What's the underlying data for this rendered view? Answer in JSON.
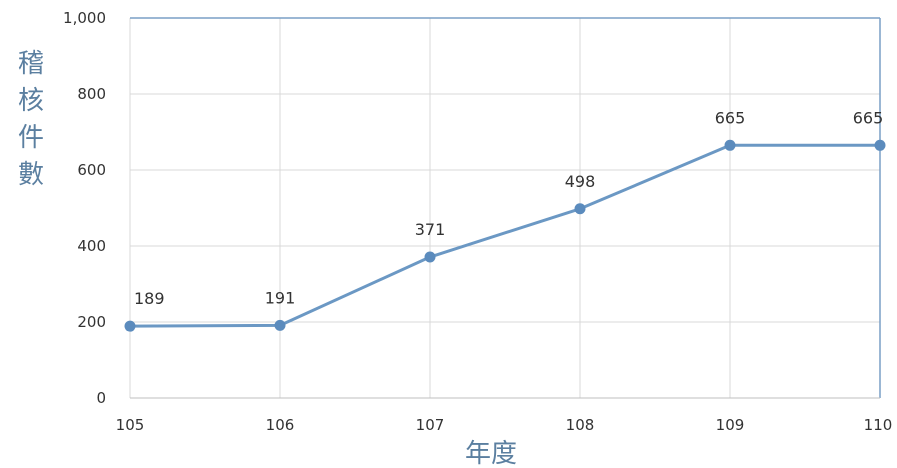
{
  "chart_data": {
    "type": "line",
    "categories": [
      "105",
      "106",
      "107",
      "108",
      "109",
      "110"
    ],
    "values": [
      189,
      191,
      371,
      498,
      665,
      665
    ],
    "data_labels": [
      "189",
      "191",
      "371",
      "498",
      "665",
      "665"
    ],
    "ylim": [
      0,
      1000
    ],
    "yticks": [
      "0",
      "200",
      "400",
      "600",
      "800",
      "1,000"
    ],
    "ylabel": "稽核件數",
    "xlabel": "年度",
    "grid": true,
    "colors": {
      "line": "#6b98c4",
      "marker": "#5b8bbd",
      "grid": "#d9d9d9",
      "axis_frame": "#7a9fc6",
      "label": "#5b7fa0"
    }
  }
}
